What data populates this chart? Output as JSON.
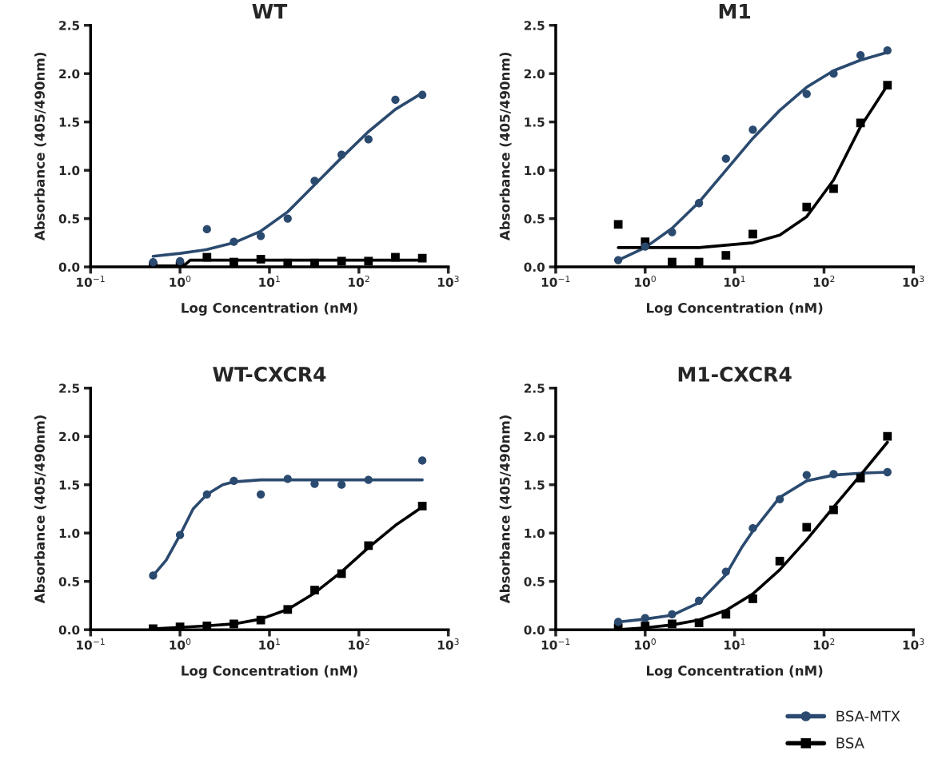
{
  "chart_data": [
    {
      "type": "scatter",
      "title": "WT",
      "xlabel": "Log Concentration (nM)",
      "ylabel": "Absorbance (405/490nm)",
      "log": "x",
      "xlim": [
        0.1,
        1000
      ],
      "ylim": [
        0,
        2.5
      ],
      "xticks": [
        {
          "value": 0.1,
          "label": "10$^{−1}$"
        },
        {
          "value": 1,
          "label": "10$^{0}$"
        },
        {
          "value": 10,
          "label": "10$^{1}$"
        },
        {
          "value": 100,
          "label": "10$^{2}$"
        },
        {
          "value": 1000,
          "label": "10$^{3}$"
        }
      ],
      "yticks": [
        {
          "value": 0,
          "label": "0.0"
        },
        0.5,
        {
          "value": 1,
          "label": "1.0"
        },
        1.5,
        {
          "value": 2,
          "label": "2.0"
        },
        2.5
      ],
      "grid": false,
      "series": [
        {
          "marker": "circle",
          "color": "#2b4a6f",
          "x": [
            0.5,
            1,
            2,
            4,
            8,
            16,
            32,
            64,
            128,
            256,
            512
          ],
          "values": [
            0.05,
            0.06,
            0.39,
            0.26,
            0.32,
            0.5,
            0.89,
            1.16,
            1.32,
            1.73,
            1.78
          ]
        },
        {
          "marker": "square",
          "color": "#000000",
          "x": [
            0.5,
            1,
            2,
            4,
            8,
            16,
            32,
            64,
            128,
            256,
            512
          ],
          "values": [
            0.01,
            0.01,
            0.1,
            0.05,
            0.08,
            0.04,
            0.04,
            0.06,
            0.06,
            0.1,
            0.09
          ]
        },
        {
          "type": "line",
          "color": "#2b4a6f",
          "x": [
            0.5,
            1,
            2,
            4,
            8,
            16,
            32,
            64,
            128,
            256,
            512
          ],
          "values": [
            0.11,
            0.14,
            0.18,
            0.25,
            0.37,
            0.57,
            0.85,
            1.13,
            1.4,
            1.63,
            1.8
          ]
        },
        {
          "type": "line",
          "color": "#000000",
          "x": [
            0.5,
            1.1,
            1.3,
            512
          ],
          "values": [
            0.01,
            0.01,
            0.07,
            0.07
          ]
        }
      ]
    },
    {
      "type": "scatter",
      "title": "M1",
      "xlabel": "Log Concentration (nM)",
      "ylabel": "Absorbance (405/490nm)",
      "log": "x",
      "xlim": [
        0.1,
        1000
      ],
      "ylim": [
        0,
        2.5
      ],
      "xticks": [
        {
          "value": 0.1,
          "label": "10$^{−1}$"
        },
        {
          "value": 1,
          "label": "10$^{0}$"
        },
        {
          "value": 10,
          "label": "10$^{1}$"
        },
        {
          "value": 100,
          "label": "10$^{2}$"
        },
        {
          "value": 1000,
          "label": "10$^{3}$"
        }
      ],
      "yticks": [
        {
          "value": 0,
          "label": "0.0"
        },
        0.5,
        {
          "value": 1,
          "label": "1.0"
        },
        1.5,
        {
          "value": 2,
          "label": "2.0"
        },
        2.5
      ],
      "grid": false,
      "series": [
        {
          "marker": "circle",
          "color": "#2b4a6f",
          "x": [
            0.5,
            1,
            2,
            4,
            8,
            16,
            64,
            128,
            256,
            512
          ],
          "values": [
            0.07,
            0.21,
            0.36,
            0.66,
            1.12,
            1.42,
            1.79,
            2.0,
            2.19,
            2.24
          ]
        },
        {
          "marker": "square",
          "color": "#000000",
          "x": [
            0.5,
            1,
            2,
            4,
            8,
            16,
            64,
            128,
            256,
            512
          ],
          "values": [
            0.44,
            0.26,
            0.05,
            0.05,
            0.12,
            0.34,
            0.62,
            0.81,
            1.49,
            1.88
          ]
        },
        {
          "type": "line",
          "color": "#2b4a6f",
          "x": [
            0.5,
            1,
            2,
            4,
            8,
            16,
            32,
            64,
            128,
            256,
            512
          ],
          "values": [
            0.07,
            0.2,
            0.4,
            0.67,
            1.0,
            1.33,
            1.62,
            1.86,
            2.03,
            2.14,
            2.22
          ]
        },
        {
          "type": "line",
          "color": "#000000",
          "x": [
            0.5,
            4,
            16,
            32,
            64,
            128,
            256,
            512
          ],
          "values": [
            0.2,
            0.2,
            0.25,
            0.33,
            0.52,
            0.9,
            1.45,
            1.88
          ]
        }
      ]
    },
    {
      "type": "scatter",
      "title": "WT-CXCR4",
      "xlabel": "Log Concentration (nM)",
      "ylabel": "Absorbance (405/490nm)",
      "log": "x",
      "xlim": [
        0.1,
        1000
      ],
      "ylim": [
        0,
        2.5
      ],
      "xticks": [
        {
          "value": 0.1,
          "label": "10$^{−1}$"
        },
        {
          "value": 1,
          "label": "10$^{0}$"
        },
        {
          "value": 10,
          "label": "10$^{1}$"
        },
        {
          "value": 100,
          "label": "10$^{2}$"
        },
        {
          "value": 1000,
          "label": "10$^{3}$"
        }
      ],
      "yticks": [
        {
          "value": 0,
          "label": "0.0"
        },
        0.5,
        {
          "value": 1,
          "label": "1.0"
        },
        1.5,
        {
          "value": 2,
          "label": "2.0"
        },
        2.5
      ],
      "grid": false,
      "series": [
        {
          "marker": "circle",
          "color": "#2b4a6f",
          "x": [
            0.5,
            1,
            2,
            4,
            8,
            16,
            32,
            64,
            128,
            512
          ],
          "values": [
            0.56,
            0.98,
            1.4,
            1.54,
            1.4,
            1.56,
            1.51,
            1.5,
            1.55,
            1.75
          ]
        },
        {
          "marker": "square",
          "color": "#000000",
          "x": [
            0.5,
            1,
            2,
            4,
            8,
            16,
            32,
            64,
            128,
            512
          ],
          "values": [
            0.01,
            0.03,
            0.04,
            0.06,
            0.1,
            0.21,
            0.41,
            0.58,
            0.87,
            1.28
          ]
        },
        {
          "type": "line",
          "color": "#2b4a6f",
          "x": [
            0.5,
            0.7,
            1,
            1.4,
            2,
            3,
            4,
            8,
            512
          ],
          "values": [
            0.56,
            0.72,
            0.98,
            1.25,
            1.4,
            1.5,
            1.53,
            1.55,
            1.55
          ]
        },
        {
          "type": "line",
          "color": "#000000",
          "x": [
            0.5,
            2,
            4,
            8,
            16,
            32,
            64,
            128,
            256,
            512
          ],
          "values": [
            0.01,
            0.04,
            0.06,
            0.11,
            0.21,
            0.38,
            0.6,
            0.85,
            1.08,
            1.27
          ]
        }
      ]
    },
    {
      "type": "scatter",
      "title": "M1-CXCR4",
      "xlabel": "Log Concentration (nM)",
      "ylabel": "Absorbance (405/490nm)",
      "log": "x",
      "xlim": [
        0.1,
        1000
      ],
      "ylim": [
        0,
        2.5
      ],
      "xticks": [
        {
          "value": 0.1,
          "label": "10$^{−1}$"
        },
        {
          "value": 1,
          "label": "10$^{0}$"
        },
        {
          "value": 10,
          "label": "10$^{1}$"
        },
        {
          "value": 100,
          "label": "10$^{2}$"
        },
        {
          "value": 1000,
          "label": "10$^{3}$"
        }
      ],
      "yticks": [
        {
          "value": 0,
          "label": "0.0"
        },
        0.5,
        {
          "value": 1,
          "label": "1.0"
        },
        1.5,
        {
          "value": 2,
          "label": "2.0"
        },
        2.5
      ],
      "grid": false,
      "legend": "bottom right",
      "series": [
        {
          "name": "BSA-MTX",
          "marker": "circle",
          "color": "#2b4a6f",
          "x": [
            0.5,
            1,
            2,
            4,
            8,
            16,
            32,
            64,
            128,
            512
          ],
          "values": [
            0.08,
            0.12,
            0.16,
            0.3,
            0.6,
            1.05,
            1.35,
            1.6,
            1.61,
            1.63
          ]
        },
        {
          "name": "BSA",
          "marker": "square",
          "color": "#000000",
          "x": [
            0.5,
            1,
            2,
            4,
            8,
            16,
            32,
            64,
            128,
            256,
            512
          ],
          "values": [
            0.02,
            0.04,
            0.06,
            0.07,
            0.16,
            0.32,
            0.71,
            1.06,
            1.24,
            1.57,
            2.0
          ]
        },
        {
          "type": "line",
          "color": "#2b4a6f",
          "x": [
            0.5,
            1,
            2,
            4,
            8,
            12,
            16,
            32,
            64,
            128,
            256,
            512
          ],
          "values": [
            0.08,
            0.11,
            0.15,
            0.28,
            0.57,
            0.85,
            1.02,
            1.37,
            1.54,
            1.6,
            1.62,
            1.63
          ]
        },
        {
          "type": "line",
          "color": "#000000",
          "x": [
            0.5,
            1,
            2,
            4,
            8,
            16,
            32,
            64,
            128,
            256,
            512
          ],
          "values": [
            0.0,
            0.02,
            0.05,
            0.1,
            0.2,
            0.37,
            0.62,
            0.93,
            1.27,
            1.6,
            1.94
          ]
        }
      ]
    }
  ]
}
